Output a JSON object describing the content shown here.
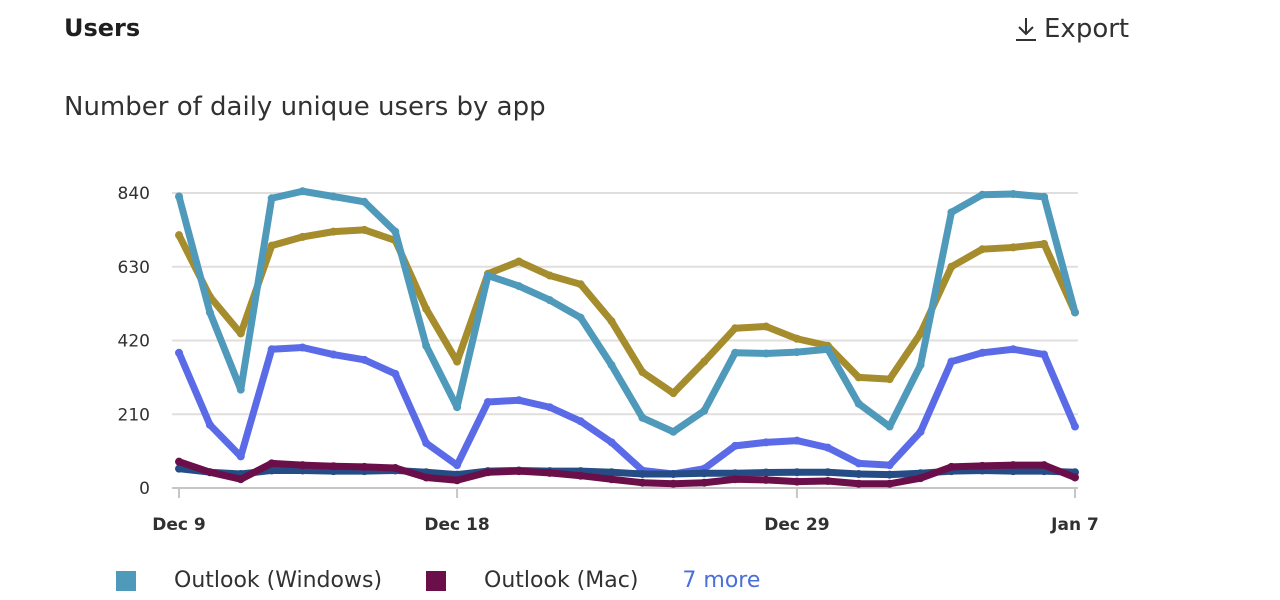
{
  "header": {
    "title": "Users",
    "export_label": "Export",
    "export_icon": "download-icon"
  },
  "chart_data": {
    "type": "line",
    "title": "Number of daily unique users by app",
    "xlabel": "",
    "ylabel": "",
    "ylim": [
      0,
      840
    ],
    "yticks": [
      "0",
      "210",
      "420",
      "630",
      "840"
    ],
    "xticks": [
      {
        "label": "Dec 9",
        "index": 0
      },
      {
        "label": "Dec 18",
        "index": 9
      },
      {
        "label": "Dec 29",
        "index": 20
      },
      {
        "label": "Jan 7",
        "index": 29
      }
    ],
    "x": [
      "Dec 9",
      "Dec 10",
      "Dec 11",
      "Dec 12",
      "Dec 13",
      "Dec 14",
      "Dec 15",
      "Dec 16",
      "Dec 17",
      "Dec 18",
      "Dec 19",
      "Dec 20",
      "Dec 21",
      "Dec 22",
      "Dec 23",
      "Dec 24",
      "Dec 25",
      "Dec 26",
      "Dec 27",
      "Dec 28",
      "Dec 29",
      "Dec 30",
      "Dec 31",
      "Jan 1",
      "Jan 2",
      "Jan 3",
      "Jan 4",
      "Jan 5",
      "Jan 6",
      "Jan 7"
    ],
    "grid": true,
    "legend_position": "bottom",
    "series": [
      {
        "color": "#a58c2d",
        "values": [
          720,
          545,
          440,
          690,
          715,
          730,
          735,
          705,
          510,
          360,
          610,
          645,
          605,
          580,
          475,
          330,
          270,
          360,
          455,
          460,
          425,
          405,
          315,
          310,
          440,
          630,
          680,
          685,
          695,
          500
        ]
      },
      {
        "color": "#5b6be8",
        "values": [
          385,
          180,
          90,
          395,
          400,
          380,
          365,
          325,
          128,
          65,
          245,
          250,
          230,
          190,
          130,
          50,
          40,
          55,
          120,
          130,
          135,
          115,
          70,
          65,
          160,
          360,
          385,
          395,
          380,
          175
        ]
      },
      {
        "color": "#264c85",
        "values": [
          55,
          45,
          40,
          50,
          50,
          48,
          48,
          50,
          45,
          38,
          48,
          50,
          48,
          48,
          45,
          40,
          40,
          42,
          42,
          44,
          45,
          45,
          40,
          38,
          42,
          48,
          50,
          48,
          48,
          45
        ]
      },
      {
        "name": "Outlook (Mac)",
        "color": "#6b0f4a",
        "values": [
          75,
          45,
          25,
          70,
          65,
          62,
          60,
          57,
          30,
          22,
          45,
          48,
          43,
          35,
          25,
          15,
          12,
          15,
          25,
          23,
          18,
          20,
          12,
          12,
          28,
          60,
          63,
          65,
          65,
          30
        ]
      },
      {
        "name": "Outlook (Windows)",
        "color": "#4f9aba",
        "values": [
          830,
          500,
          280,
          825,
          845,
          830,
          815,
          730,
          405,
          230,
          605,
          575,
          535,
          485,
          350,
          200,
          160,
          220,
          385,
          383,
          387,
          395,
          240,
          175,
          350,
          785,
          835,
          837,
          829,
          500
        ]
      }
    ]
  },
  "legend": {
    "items": [
      {
        "label": "Outlook (Windows)",
        "color": "#4f9aba"
      },
      {
        "label": "Outlook (Mac)",
        "color": "#6b0f4a"
      }
    ],
    "more_label": "7 more"
  }
}
